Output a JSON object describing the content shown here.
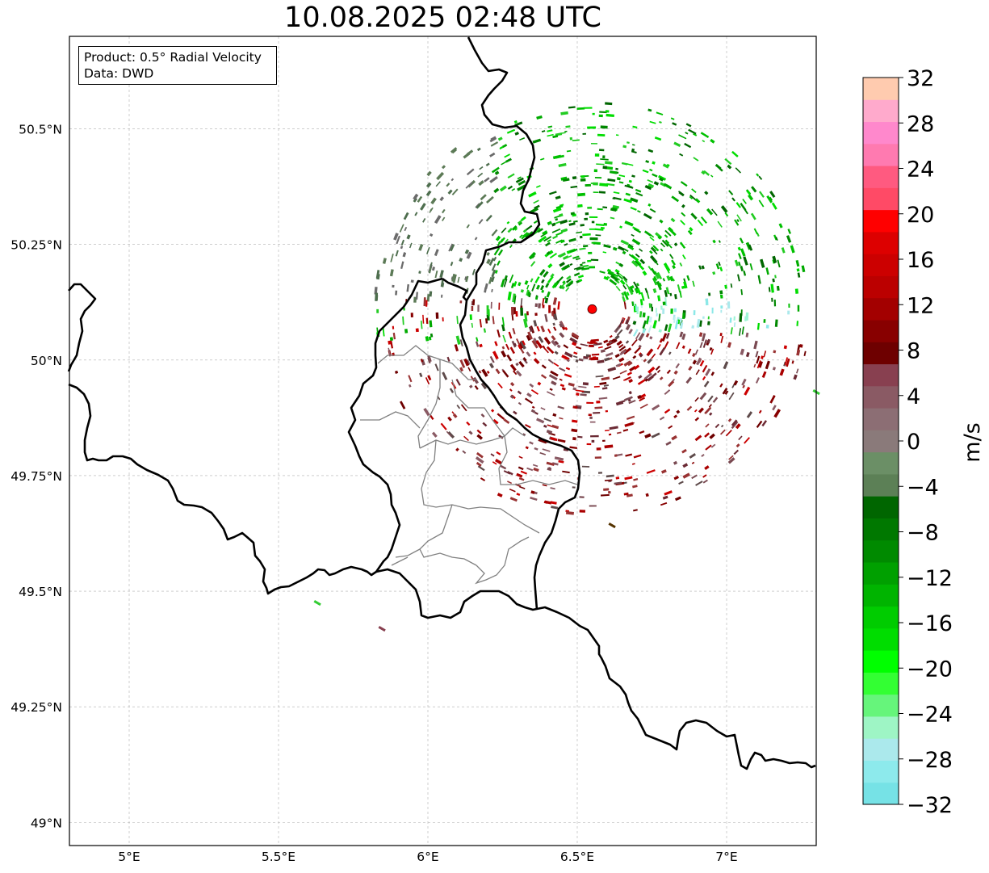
{
  "title": "10.08.2025 02:48 UTC",
  "info": {
    "product_label": "Product: 0.5° Radial Velocity",
    "data_label": "Data: DWD"
  },
  "axes": {
    "lon_ticks": [
      "5°E",
      "5.5°E",
      "6°E",
      "6.5°E",
      "7°E"
    ],
    "lat_ticks": [
      "50.5°N",
      "50.25°N",
      "50°N",
      "49.75°N",
      "49.5°N",
      "49.25°N",
      "49°N"
    ],
    "lon_values": [
      5.0,
      5.5,
      6.0,
      6.5,
      7.0
    ],
    "lat_values": [
      50.5,
      50.25,
      50.0,
      49.75,
      49.5,
      49.25,
      49.0
    ],
    "lon_range": [
      4.8,
      7.3
    ],
    "lat_range": [
      48.95,
      50.7
    ],
    "grid": true
  },
  "radar_site": {
    "lon": 6.55,
    "lat": 50.11,
    "color": "#ff0000"
  },
  "colorbar": {
    "unit": "m/s",
    "range": [
      -32,
      32
    ],
    "tick_labels": [
      "32",
      "28",
      "24",
      "20",
      "16",
      "12",
      "8",
      "4",
      "0",
      "−4",
      "−8",
      "−12",
      "−16",
      "−20",
      "−24",
      "−28",
      "−32"
    ],
    "colors_bottom_to_top": [
      "#76e2e6",
      "#8deaec",
      "#abe9ec",
      "#9ef5c5",
      "#66f57b",
      "#33ff33",
      "#00ff00",
      "#00dd00",
      "#00cc00",
      "#00b400",
      "#00a000",
      "#008a00",
      "#007800",
      "#006600",
      "#5c8056",
      "#6b8f66",
      "#8a7a7a",
      "#8c6e74",
      "#8a5a64",
      "#884050",
      "#6e0000",
      "#880000",
      "#a30000",
      "#bb0000",
      "#cc0000",
      "#dd0000",
      "#ff0000",
      "#ff4a66",
      "#ff5a80",
      "#ff7ab0",
      "#ff88cc",
      "#ffaacc",
      "#ffcbaf"
    ]
  }
}
